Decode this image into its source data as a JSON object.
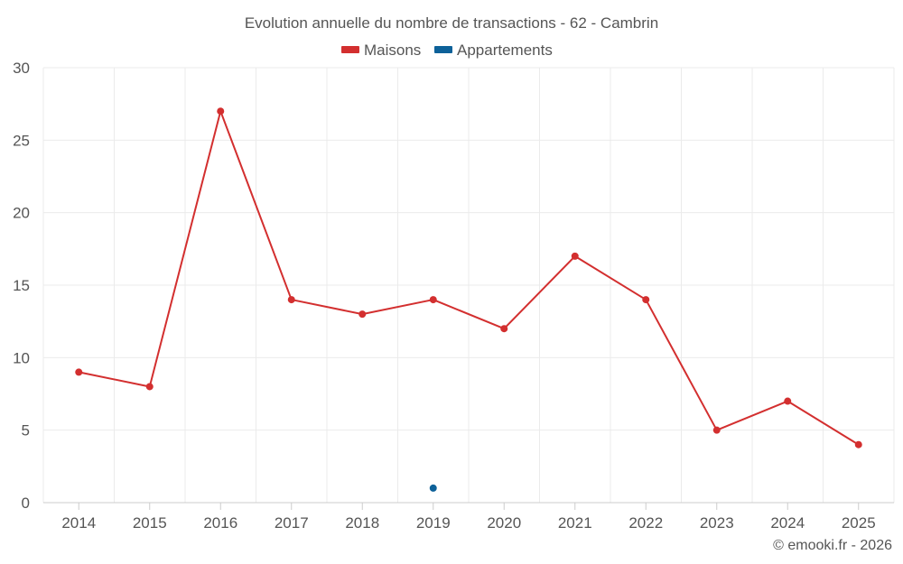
{
  "chart_data": {
    "type": "line",
    "title": "Evolution annuelle du nombre de transactions - 62 - Cambrin",
    "categories": [
      "2014",
      "2015",
      "2016",
      "2017",
      "2018",
      "2019",
      "2020",
      "2021",
      "2022",
      "2023",
      "2024",
      "2025"
    ],
    "series": [
      {
        "name": "Maisons",
        "color": "#d32f2f",
        "values": [
          9,
          8,
          27,
          14,
          13,
          14,
          12,
          17,
          14,
          5,
          7,
          4
        ]
      },
      {
        "name": "Appartements",
        "color": "#0d6199",
        "values": [
          null,
          null,
          null,
          null,
          null,
          1,
          null,
          null,
          null,
          null,
          null,
          null
        ]
      }
    ],
    "ylim": [
      0,
      30
    ],
    "yticks": [
      0,
      5,
      10,
      15,
      20,
      25,
      30
    ],
    "xlabel": "",
    "ylabel": "",
    "grid": true,
    "legend_position": "top-center"
  },
  "credit": "© emooki.fr - 2026"
}
